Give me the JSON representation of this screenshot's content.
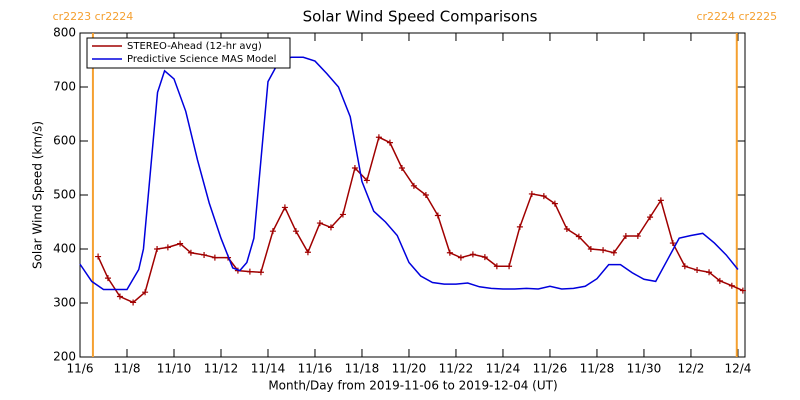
{
  "chart_data": {
    "type": "line",
    "title": "Solar Wind Speed Comparisons",
    "x_label": "Month/Day from 2019-11-06 to 2019-12-04 (UT)",
    "y_label": "Solar Wind Speed (km/s)",
    "xlim": [
      0,
      28.3
    ],
    "ylim": [
      200,
      800
    ],
    "yticks": [
      200,
      300,
      400,
      500,
      600,
      700,
      800
    ],
    "xticks": [
      {
        "value": 0,
        "label": "11/6"
      },
      {
        "value": 2,
        "label": "11/8"
      },
      {
        "value": 4,
        "label": "11/10"
      },
      {
        "value": 6,
        "label": "11/12"
      },
      {
        "value": 8,
        "label": "11/14"
      },
      {
        "value": 10,
        "label": "11/16"
      },
      {
        "value": 12,
        "label": "11/18"
      },
      {
        "value": 14,
        "label": "11/20"
      },
      {
        "value": 16,
        "label": "11/22"
      },
      {
        "value": 18,
        "label": "11/24"
      },
      {
        "value": 20,
        "label": "11/26"
      },
      {
        "value": 22,
        "label": "11/28"
      },
      {
        "value": 24,
        "label": "11/30"
      },
      {
        "value": 26,
        "label": "12/2"
      },
      {
        "value": 28,
        "label": "12/4"
      }
    ],
    "legend": "upper left",
    "markers": [
      {
        "x": 0.55,
        "label": "cr2223 cr2224",
        "color": "#f5a030"
      },
      {
        "x": 27.95,
        "label": "cr2224 cr2225",
        "color": "#f5a030"
      }
    ],
    "series": [
      {
        "name": "STEREO-Ahead (12-hr avg)",
        "color": "#a00000",
        "marker": "+",
        "x": [
          0.77,
          1.19,
          1.7,
          2.26,
          2.77,
          3.28,
          3.74,
          4.26,
          4.72,
          5.28,
          5.74,
          6.3,
          6.72,
          7.23,
          7.7,
          8.21,
          8.72,
          9.19,
          9.7,
          10.21,
          10.68,
          11.19,
          11.7,
          12.21,
          12.72,
          13.19,
          13.7,
          14.21,
          14.72,
          15.23,
          15.74,
          16.21,
          16.72,
          17.23,
          17.74,
          18.26,
          18.72,
          19.23,
          19.74,
          20.21,
          20.72,
          21.23,
          21.74,
          22.26,
          22.72,
          23.23,
          23.74,
          24.26,
          24.72,
          25.23,
          25.74,
          26.26,
          26.77,
          27.23,
          27.74,
          28.21
        ],
        "values": [
          386,
          346,
          312,
          301,
          320,
          400,
          403,
          410,
          393,
          389,
          384,
          384,
          360,
          358,
          357,
          433,
          477,
          433,
          394,
          448,
          440,
          464,
          550,
          527,
          607,
          597,
          550,
          517,
          500,
          462,
          393,
          384,
          390,
          385,
          368,
          368,
          441,
          502,
          498,
          484,
          437,
          423,
          400,
          398,
          393,
          424,
          424,
          459,
          490,
          411,
          368,
          361,
          357,
          341,
          332,
          323
        ]
      },
      {
        "name": "Predictive Science MAS Model",
        "color": "#0000dd",
        "x": [
          0,
          0.5,
          1,
          1.5,
          2,
          2.5,
          2.7,
          3.0,
          3.3,
          3.6,
          4,
          4.5,
          5,
          5.5,
          6,
          6.5,
          6.8,
          7.1,
          7.4,
          7.7,
          8,
          8.5,
          9,
          9.5,
          10,
          10.5,
          11,
          11.5,
          12,
          12.5,
          13,
          13.5,
          14,
          14.5,
          15,
          15.5,
          16,
          16.5,
          17,
          17.5,
          18,
          18.5,
          19,
          19.5,
          20,
          20.5,
          21,
          21.5,
          22,
          22.5,
          23,
          23.5,
          24,
          24.5,
          25,
          25.5,
          26,
          26.5,
          27,
          27.5,
          28
        ],
        "values": [
          372,
          340,
          325,
          325,
          325,
          362,
          400,
          545,
          690,
          730,
          715,
          655,
          565,
          485,
          420,
          365,
          360,
          375,
          420,
          565,
          710,
          750,
          755,
          755,
          748,
          725,
          700,
          645,
          525,
          470,
          450,
          425,
          375,
          350,
          338,
          335,
          335,
          337,
          330,
          327,
          326,
          326,
          327,
          326,
          331,
          326,
          327,
          331,
          345,
          371,
          371,
          356,
          344,
          340,
          380,
          420,
          425,
          429,
          411,
          389,
          362
        ]
      }
    ]
  }
}
